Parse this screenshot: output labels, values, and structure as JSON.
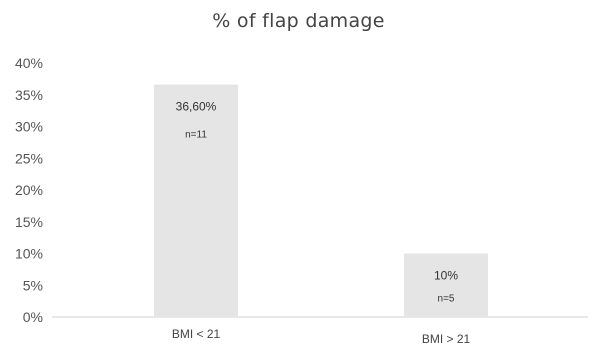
{
  "chart_data": {
    "type": "bar",
    "title": "% of flap damage",
    "categories": [
      "BMI < 21",
      "BMI > 21"
    ],
    "values": [
      36.6,
      10
    ],
    "value_labels": [
      "36,60%",
      "10%"
    ],
    "n_labels": [
      "n=11",
      "n=5"
    ],
    "ylim": [
      0,
      40
    ],
    "yticks": [
      "0%",
      "5%",
      "10%",
      "15%",
      "20%",
      "25%",
      "30%",
      "35%",
      "40%"
    ],
    "xlabel": "",
    "ylabel": "",
    "grid": false,
    "legend": "none",
    "bar_color": "#e5e5e5",
    "axis_color": "#d0d0d0"
  }
}
